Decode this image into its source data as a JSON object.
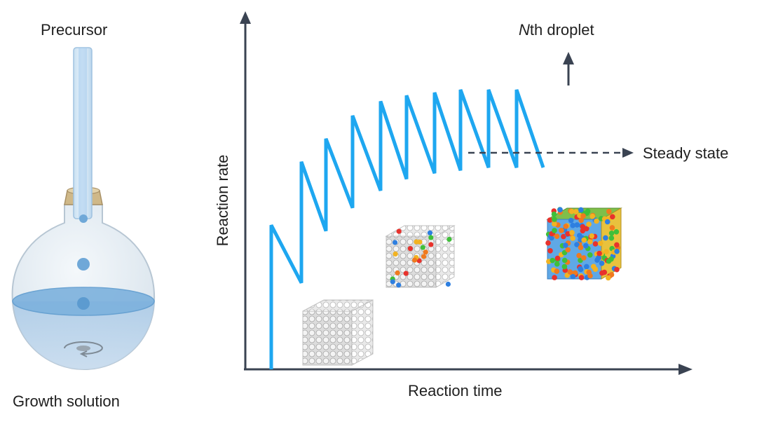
{
  "flask": {
    "top_label": "Precursor",
    "bottom_label": "Growth solution"
  },
  "chart_labels": {
    "nth": "th droplet",
    "nth_italic": "N",
    "steady": "Steady state",
    "xlabel": "Reaction time",
    "ylabel": "Reaction rate"
  },
  "chart_data": {
    "type": "line",
    "series": [
      {
        "values": [
          0,
          0.5,
          0.3,
          0.72,
          0.48,
          0.8,
          0.56,
          0.88,
          0.62,
          0.93,
          0.66,
          0.95,
          0.68,
          0.96,
          0.69,
          0.97,
          0.7,
          0.97,
          0.7,
          0.97,
          0.7
        ]
      }
    ],
    "colors": {
      "line": "#1ea7f0",
      "axis": "#3a4352",
      "flask_liquid": "#6fa8d8"
    }
  },
  "icons": [
    "flask-icon",
    "droplet-icon",
    "cube-pure-icon",
    "cube-mixed-icon",
    "cube-alloy-icon",
    "up-arrow-icon",
    "dashed-arrow-icon"
  ]
}
